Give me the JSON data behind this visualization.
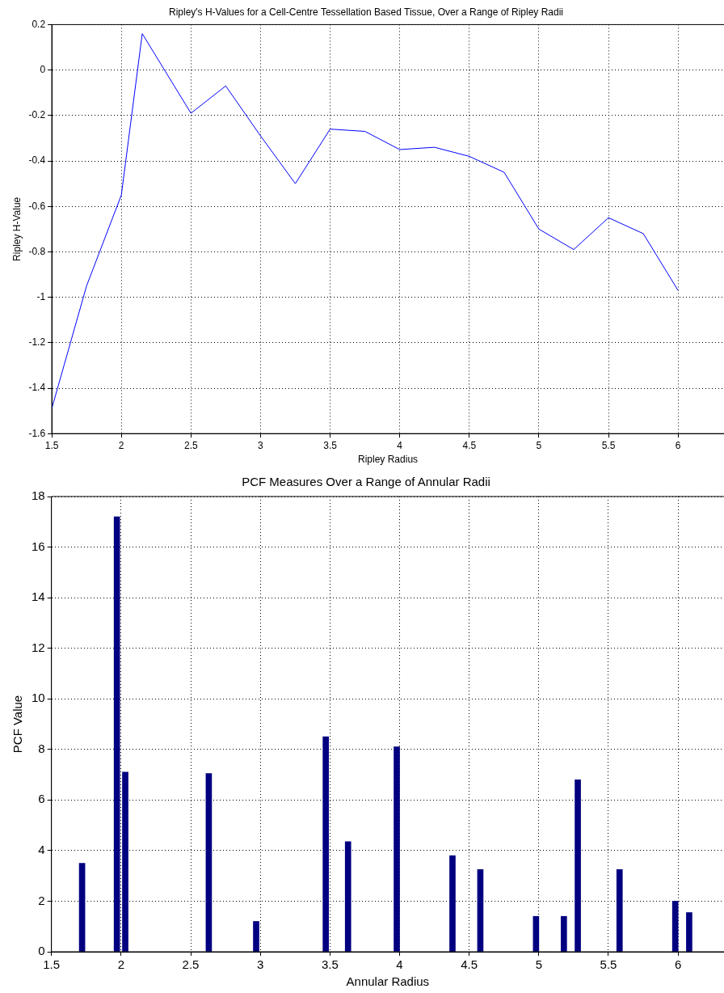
{
  "chart_data": [
    {
      "type": "line",
      "title": "Ripley's H-Values for a Cell-Centre Tessellation Based Tissue, Over a Range of Ripley Radii",
      "xlabel": "Ripley Radius",
      "ylabel": "Ripley H-Value",
      "x": [
        1.5,
        1.75,
        2,
        2.15,
        2.5,
        2.75,
        3,
        3.25,
        3.5,
        3.75,
        4,
        4.25,
        4.5,
        4.75,
        5,
        5.25,
        5.5,
        5.75,
        6
      ],
      "series": [
        {
          "color": "#0000ff",
          "values": [
            -1.49,
            -0.95,
            -0.55,
            0.16,
            -0.19,
            -0.07,
            -0.29,
            -0.5,
            -0.26,
            -0.27,
            -0.35,
            -0.34,
            -0.38,
            -0.45,
            -0.7,
            -0.79,
            -0.65,
            -0.72,
            -0.97
          ]
        }
      ],
      "xlim": [
        1.5,
        6.33
      ],
      "xticks": [
        1.5,
        2,
        2.5,
        3,
        3.5,
        4,
        4.5,
        5,
        5.5,
        6
      ],
      "ylim": [
        -1.6,
        0.2
      ],
      "yticks": [
        -1.6,
        -1.4,
        -1.2,
        -1,
        -0.8,
        -0.6,
        -0.4,
        -0.2,
        0,
        0.2
      ],
      "grid": true,
      "legend": false,
      "marker": "none",
      "line_style": "solid"
    },
    {
      "type": "bar",
      "title": "PCF Measures Over a Range of Annular Radii",
      "xlabel": "Annular Radius",
      "ylabel": "PCF Value",
      "x": [
        1.72,
        1.97,
        2.03,
        2.63,
        2.97,
        3.47,
        3.63,
        3.98,
        4.38,
        4.58,
        4.98,
        5.18,
        5.28,
        5.58,
        5.98,
        6.08
      ],
      "series": [
        {
          "color": "#000080",
          "values": [
            3.5,
            17.2,
            7.1,
            7.05,
            1.2,
            8.5,
            4.35,
            8.1,
            3.8,
            3.25,
            1.4,
            1.4,
            6.8,
            3.25,
            2,
            1.55
          ]
        }
      ],
      "xlim": [
        1.5,
        6.33
      ],
      "xticks": [
        1.5,
        2,
        2.5,
        3,
        3.5,
        4,
        4.5,
        5,
        5.5,
        6
      ],
      "ylim": [
        0,
        18
      ],
      "yticks": [
        0,
        2,
        4,
        6,
        8,
        10,
        12,
        14,
        16,
        18
      ],
      "grid": true,
      "legend": false
    }
  ]
}
